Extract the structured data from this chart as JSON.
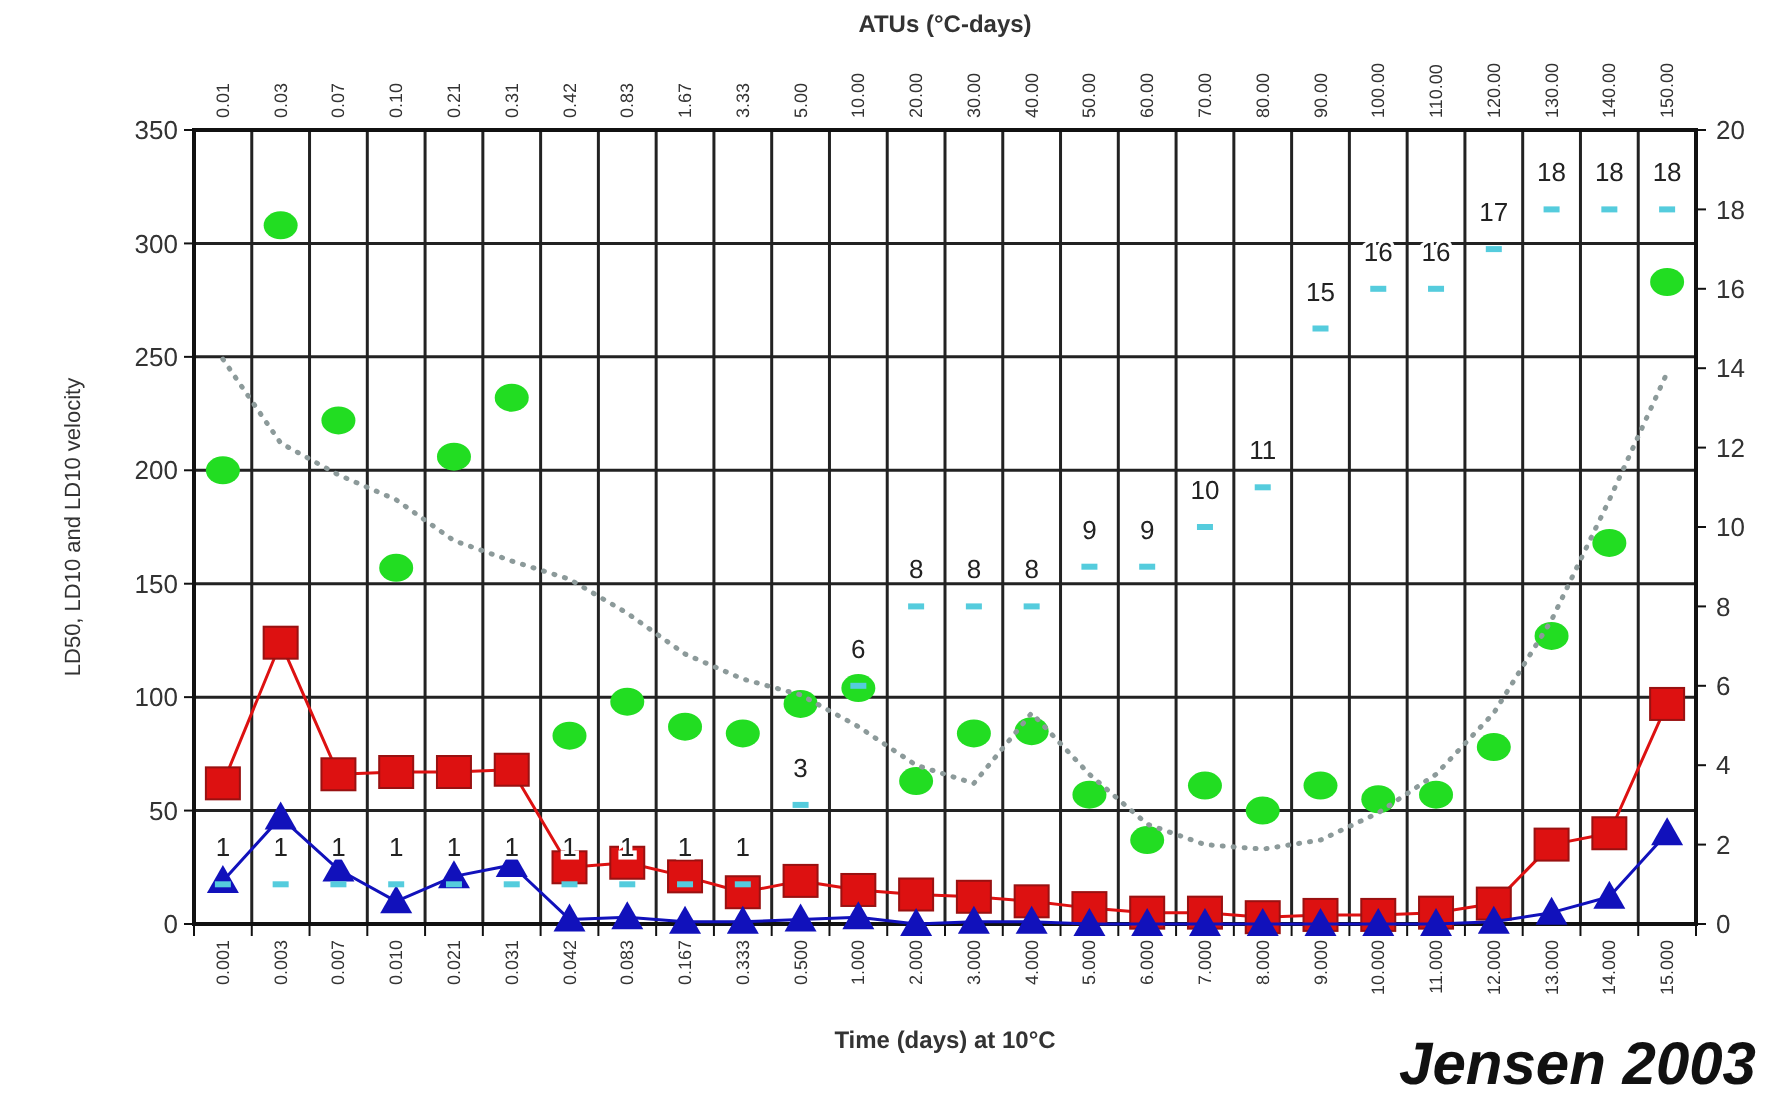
{
  "chart_data": {
    "type": "line",
    "xlabel": "Time (days) at 10°C",
    "x2label": "ATUs (°C-days)",
    "ylabel": "LD50, LD10 and LD10 velocity",
    "categories": [
      "0.001",
      "0.003",
      "0.007",
      "0.010",
      "0.021",
      "0.031",
      "0.042",
      "0.083",
      "0.167",
      "0.333",
      "0.500",
      "1.000",
      "2.000",
      "3.000",
      "4.000",
      "5.000",
      "6.000",
      "7.000",
      "8.000",
      "9.000",
      "10.000",
      "11.000",
      "12.000",
      "13.000",
      "14.000",
      "15.000"
    ],
    "ylim": [
      0,
      350
    ],
    "yticks": [
      0,
      50,
      100,
      150,
      200,
      250,
      300,
      350
    ],
    "y2lim": [
      0,
      20
    ],
    "y2ticks": [
      0,
      2,
      4,
      6,
      8,
      10,
      12,
      14,
      16,
      18,
      20
    ],
    "grid": true,
    "series": [
      {
        "type": "scatter",
        "marker": "circle",
        "color": "#22dd22",
        "values": [
          200,
          308,
          222,
          157,
          206,
          232,
          83,
          98,
          87,
          84,
          97,
          104,
          63,
          84,
          85,
          57,
          37,
          61,
          50,
          61,
          55,
          57,
          78,
          127,
          168,
          283
        ]
      },
      {
        "type": "line",
        "line_style": "dotted",
        "marker": "none",
        "color": "#8c9a9a",
        "values": [
          249,
          212,
          198,
          187,
          169,
          160,
          152,
          137,
          119,
          108,
          101,
          87,
          70,
          62,
          93,
          66,
          44,
          35,
          33,
          37,
          49,
          66,
          93,
          134,
          187,
          243
        ]
      },
      {
        "marker": "square",
        "color": "#dd1111",
        "values": [
          62,
          124,
          66,
          67,
          67,
          68,
          25,
          27,
          21,
          14,
          19,
          15,
          13,
          12,
          10,
          7,
          5,
          5,
          3,
          4,
          4,
          5,
          9,
          35,
          40,
          97
        ]
      },
      {
        "marker": "triangle",
        "color": "#1111bb",
        "values": [
          19,
          47,
          24,
          10,
          21,
          26,
          2,
          3,
          1,
          1,
          2,
          3,
          0,
          1,
          1,
          0,
          0,
          0,
          0,
          0,
          0,
          0,
          1,
          5,
          12,
          40
        ]
      },
      {
        "type": "scatter",
        "axis": "y2",
        "color": "#55ccdd",
        "values": [
          1,
          1,
          1,
          1,
          1,
          1,
          1,
          1,
          1,
          1,
          3,
          6,
          8,
          8,
          8,
          9,
          9,
          10,
          11,
          15,
          16,
          16,
          17,
          18,
          18,
          18
        ],
        "value_labels": [
          "1",
          "1",
          "1",
          "1",
          "1",
          "1",
          "1",
          "1",
          "1",
          "1",
          "3",
          "6",
          "8",
          "8",
          "8",
          "9",
          "9",
          "10",
          "11",
          "15",
          "16",
          "16",
          "17",
          "18",
          "18",
          "18"
        ]
      }
    ],
    "annotations": [
      "0.01",
      "0.03",
      "0.07",
      "0.10",
      "0.21",
      "0.31",
      "0.42",
      "0.83",
      "1.67",
      "3.33",
      "5.00",
      "10.00",
      "20.00",
      "30.00",
      "40.00",
      "50.00",
      "60.00",
      "70.00",
      "80.00",
      "90.00",
      "100.00",
      "110.00",
      "120.00",
      "130.00",
      "140.00",
      "150.00",
      "Jensen 2003"
    ]
  }
}
